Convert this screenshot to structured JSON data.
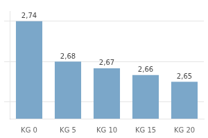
{
  "chart_data": {
    "type": "bar",
    "categories": [
      "KG 0",
      "KG 5",
      "KG 10",
      "KG 15",
      "KG 20"
    ],
    "values": [
      2.74,
      2.68,
      2.67,
      2.66,
      2.65
    ],
    "value_labels": [
      "2,74",
      "2,68",
      "2,67",
      "2,66",
      "2,65"
    ],
    "color": "#7ba7c9",
    "ylim": [
      2.595,
      2.755
    ],
    "yticks": [
      2.62,
      2.68,
      2.74
    ],
    "grid": true,
    "data_labels": true,
    "tick_labels": "x"
  }
}
